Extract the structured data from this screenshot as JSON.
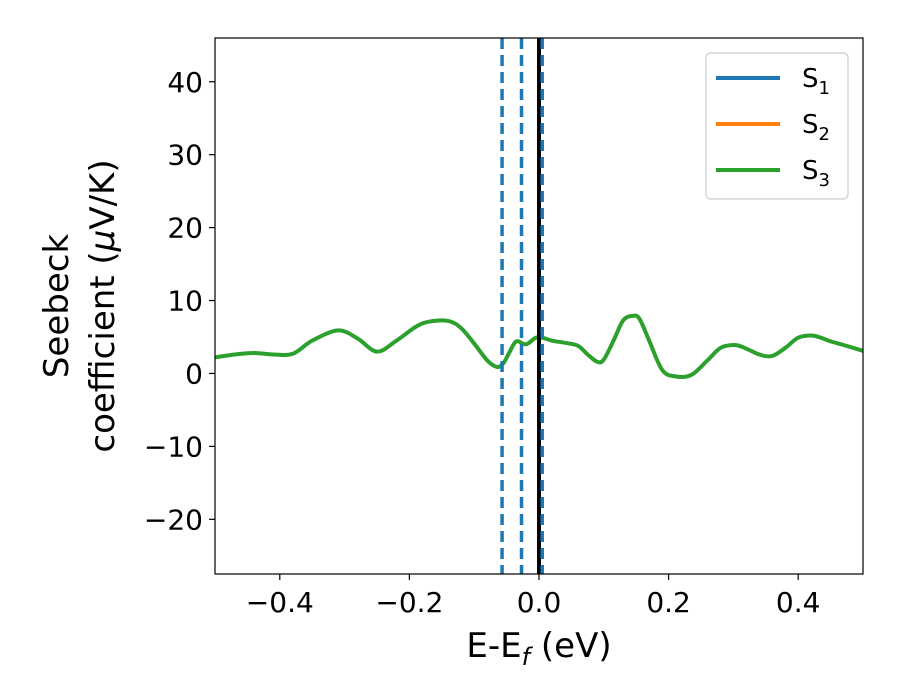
{
  "chart_data": {
    "type": "line",
    "title": "",
    "xlabel": {
      "base": "E-E",
      "subscript": "f",
      "suffix": " (eV)"
    },
    "ylabel": {
      "line1": "Seebeck",
      "line2_prefix": "coefficient  (",
      "mu": "μ",
      "line2_suffix": "V/K)"
    },
    "xlim": [
      -0.5,
      0.5
    ],
    "ylim": [
      -27.5,
      46
    ],
    "xticks": [
      -0.4,
      -0.2,
      0.0,
      0.2,
      0.4
    ],
    "xtick_labels": [
      "−0.4",
      "−0.2",
      "0.0",
      "0.2",
      "0.4"
    ],
    "yticks": [
      -20,
      -10,
      0,
      10,
      20,
      30,
      40
    ],
    "ytick_labels": [
      "−20",
      "−10",
      "0",
      "10",
      "20",
      "30",
      "40"
    ],
    "grid": false,
    "legend_position": "top-right",
    "series": [
      {
        "name_base": "S",
        "name_sub": "1",
        "color": "#1f77b4",
        "values": []
      },
      {
        "name_base": "S",
        "name_sub": "2",
        "color": "#ff7f0e",
        "values": []
      },
      {
        "name_base": "S",
        "name_sub": "3",
        "color": "#2ca02c",
        "x": [
          -0.5,
          -0.47,
          -0.44,
          -0.41,
          -0.38,
          -0.35,
          -0.31,
          -0.28,
          -0.25,
          -0.22,
          -0.19,
          -0.17,
          -0.14,
          -0.12,
          -0.1,
          -0.08,
          -0.065,
          -0.055,
          -0.045,
          -0.035,
          -0.02,
          -0.005,
          0.005,
          0.02,
          0.04,
          0.06,
          0.075,
          0.09,
          0.1,
          0.115,
          0.13,
          0.145,
          0.155,
          0.17,
          0.19,
          0.21,
          0.235,
          0.26,
          0.28,
          0.3,
          0.315,
          0.34,
          0.36,
          0.38,
          0.4,
          0.42,
          0.435,
          0.45,
          0.47,
          0.5
        ],
        "values": [
          2.2,
          2.6,
          2.8,
          2.6,
          2.7,
          4.5,
          5.9,
          4.8,
          3.0,
          4.5,
          6.4,
          7.1,
          7.2,
          6.2,
          4.1,
          1.8,
          0.9,
          1.4,
          3.0,
          4.4,
          4.0,
          4.9,
          4.9,
          4.5,
          4.2,
          3.8,
          2.6,
          1.6,
          1.9,
          4.5,
          7.3,
          7.9,
          7.5,
          4.5,
          0.5,
          -0.4,
          -0.2,
          1.8,
          3.5,
          3.9,
          3.6,
          2.6,
          2.4,
          3.5,
          4.9,
          5.2,
          4.9,
          4.4,
          3.9,
          3.1
        ]
      }
    ],
    "vlines": [
      {
        "x": 0.0,
        "color": "#000000",
        "style": "solid"
      },
      {
        "x": -0.057,
        "color": "#1f77b4",
        "style": "dashed"
      },
      {
        "x": -0.027,
        "color": "#1f77b4",
        "style": "dashed"
      },
      {
        "x": 0.005,
        "color": "#1f77b4",
        "style": "dashed"
      }
    ]
  }
}
